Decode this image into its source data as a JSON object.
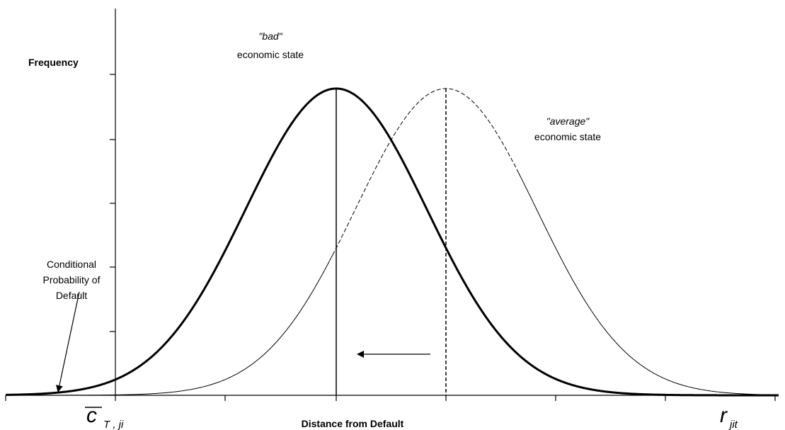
{
  "axis": {
    "y_label": "Frequency",
    "x_label": "Distance from Default"
  },
  "curves": [
    {
      "label_top": "\"bad\"",
      "label_bottom": "economic state"
    },
    {
      "label_top": "\"average\"",
      "label_bottom": "economic state"
    }
  ],
  "annotation": {
    "lines": [
      "Conditional",
      "Probability of",
      "Default"
    ]
  },
  "x_markers": [
    {
      "symbol": "c",
      "subscript": "T , ji"
    },
    {
      "symbol": "r",
      "subscript": "jit"
    }
  ]
}
